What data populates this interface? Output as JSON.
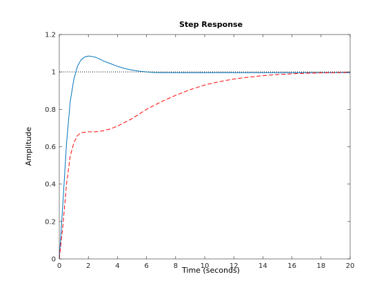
{
  "chart_data": {
    "type": "line",
    "title": "Step Response",
    "xlabel": "Time (seconds)",
    "ylabel": "Amplitude",
    "xlim": [
      0,
      20
    ],
    "ylim": [
      0,
      1.2
    ],
    "xticks": [
      0,
      2,
      4,
      6,
      8,
      10,
      12,
      14,
      16,
      18,
      20
    ],
    "yticks": [
      0,
      0.2,
      0.4,
      0.6,
      0.8,
      1,
      1.2
    ],
    "xtick_labels": [
      "0",
      "2",
      "4",
      "6",
      "8",
      "10",
      "12",
      "14",
      "16",
      "18",
      "20"
    ],
    "ytick_labels": [
      "0",
      "0.2",
      "0.4",
      "0.6",
      "0.8",
      "1",
      "1.2"
    ],
    "grid": false,
    "reference_line": {
      "y": 1,
      "style": "dotted",
      "color": "#000000"
    },
    "series": [
      {
        "style": "solid",
        "color": "#0072BD",
        "x": [
          0,
          0.25,
          0.5,
          0.75,
          1.0,
          1.25,
          1.5,
          1.75,
          2.0,
          2.25,
          2.5,
          2.75,
          3.0,
          3.5,
          4.0,
          4.5,
          5.0,
          5.5,
          6.0,
          6.5,
          7,
          8,
          10,
          12,
          14,
          16,
          18,
          20
        ],
        "y": [
          0,
          0.3,
          0.62,
          0.84,
          0.96,
          1.03,
          1.065,
          1.08,
          1.085,
          1.083,
          1.078,
          1.07,
          1.06,
          1.045,
          1.03,
          1.018,
          1.01,
          1.004,
          1.0,
          0.997,
          0.996,
          0.996,
          0.996,
          0.996,
          0.996,
          0.996,
          0.996,
          0.996
        ]
      },
      {
        "style": "dashed",
        "color": "#ff0000",
        "x": [
          0,
          0.25,
          0.5,
          0.75,
          1.0,
          1.25,
          1.5,
          2.0,
          2.5,
          3.0,
          3.5,
          4.0,
          4.5,
          5.0,
          5.5,
          6.0,
          7,
          8,
          9,
          10,
          11,
          12,
          13,
          14,
          15,
          16,
          17,
          18,
          19,
          20
        ],
        "y": [
          0,
          0.18,
          0.4,
          0.55,
          0.62,
          0.66,
          0.675,
          0.68,
          0.68,
          0.685,
          0.695,
          0.71,
          0.73,
          0.75,
          0.775,
          0.8,
          0.84,
          0.875,
          0.905,
          0.93,
          0.948,
          0.962,
          0.972,
          0.98,
          0.986,
          0.99,
          0.993,
          0.995,
          0.997,
          0.998
        ]
      }
    ]
  }
}
